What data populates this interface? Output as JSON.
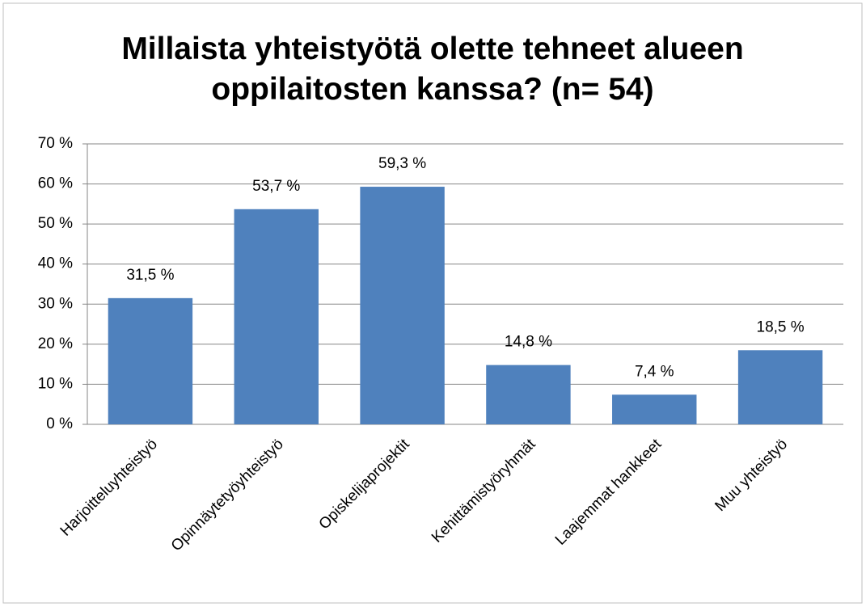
{
  "chart_data": {
    "type": "bar",
    "title": "Millaista yhteistyötä olette tehneet alueen oppilaitosten kanssa? (n= 54)",
    "categories": [
      "Harjoitteluyhteistyö",
      "Opinnäytetyöyhteistyö",
      "Opiskelijaprojektit",
      "Kehittämistyöryhmät",
      "Laajemmat hankkeet",
      "Muu yhteistyö"
    ],
    "values": [
      31.5,
      53.7,
      59.3,
      14.8,
      7.4,
      18.5
    ],
    "value_labels": [
      "31,5 %",
      "53,7 %",
      "59,3 %",
      "14,8 %",
      "7,4 %",
      "18,5 %"
    ],
    "color": "#4f81bd",
    "ylim": [
      0,
      70
    ],
    "yticks": [
      {
        "value": 0,
        "label": "0 %"
      },
      {
        "value": 10,
        "label": "10 %"
      },
      {
        "value": 20,
        "label": "20 %"
      },
      {
        "value": 30,
        "label": "30 %"
      },
      {
        "value": 40,
        "label": "40 %"
      },
      {
        "value": 50,
        "label": "50 %"
      },
      {
        "value": 60,
        "label": "60 %"
      },
      {
        "value": 70,
        "label": "70 %"
      }
    ],
    "grid": true
  }
}
